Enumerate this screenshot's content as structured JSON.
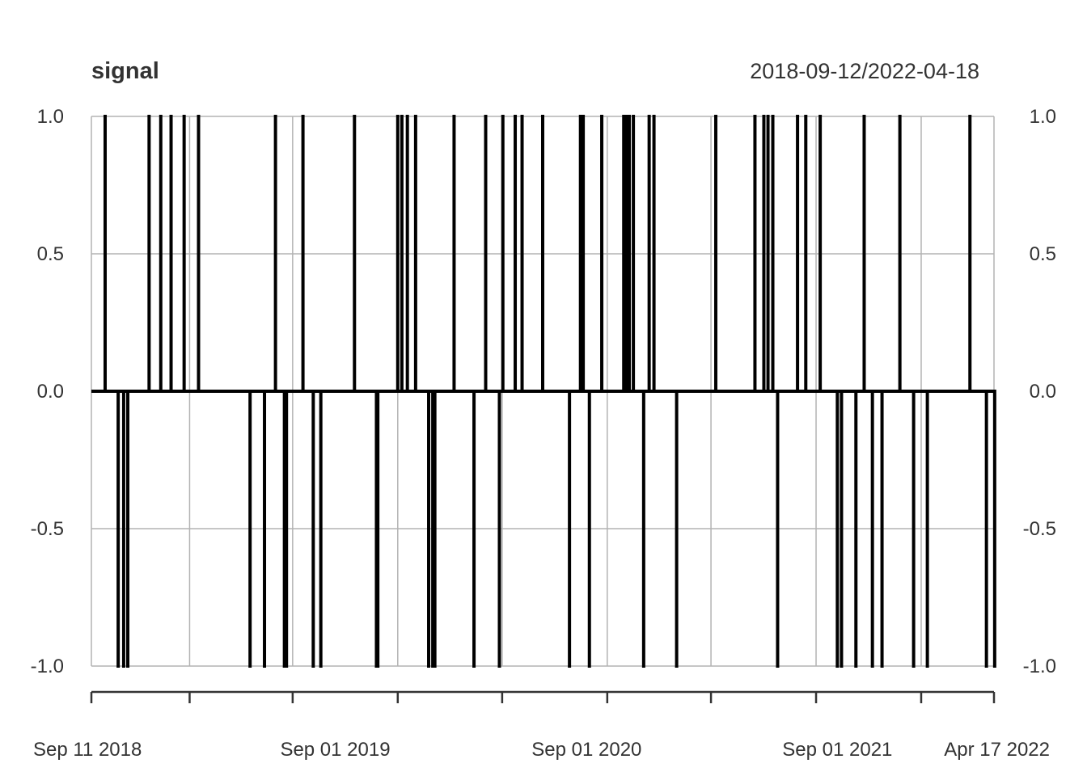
{
  "chart_data": {
    "type": "line",
    "title": "signal",
    "date_range_label": "2018-09-12/2022-04-18",
    "xlabel": "",
    "ylabel": "",
    "ylim": [
      -1.0,
      1.0
    ],
    "xlim": [
      "2018-09-11",
      "2022-04-17"
    ],
    "y_tick_labels": [
      "1.0",
      "0.5",
      "0.0",
      "-0.5",
      "-1.0"
    ],
    "y_ticks": [
      1.0,
      0.5,
      0.0,
      -0.5,
      -1.0
    ],
    "x_ticks": [
      "2018-09-11",
      "2019-02-01",
      "2019-07-01",
      "2019-12-01",
      "2020-05-01",
      "2020-10-01",
      "2021-03-01",
      "2021-08-01",
      "2022-01-01",
      "2022-04-17"
    ],
    "x_tick_labels": [
      {
        "date": "2018-09-11",
        "label": "Sep 11 2018"
      },
      {
        "date": "2019-09-01",
        "label": "Sep 01 2019"
      },
      {
        "date": "2020-09-01",
        "label": "Sep 01 2020"
      },
      {
        "date": "2021-09-01",
        "label": "Sep 01 2021"
      },
      {
        "date": "2022-04-17",
        "label": "Apr 17 2022"
      }
    ],
    "grid": true,
    "series": [
      {
        "values_note_free": true,
        "signal_events": [
          {
            "date": "2018-10-01",
            "value": 1
          },
          {
            "date": "2018-10-20",
            "value": -1
          },
          {
            "date": "2018-10-28",
            "value": -1
          },
          {
            "date": "2018-11-03",
            "value": -1
          },
          {
            "date": "2018-12-04",
            "value": 1
          },
          {
            "date": "2018-12-21",
            "value": 1
          },
          {
            "date": "2019-01-05",
            "value": 1
          },
          {
            "date": "2019-01-24",
            "value": 1
          },
          {
            "date": "2019-02-14",
            "value": 1
          },
          {
            "date": "2019-04-30",
            "value": -1
          },
          {
            "date": "2019-05-21",
            "value": -1
          },
          {
            "date": "2019-06-06",
            "value": 1
          },
          {
            "date": "2019-06-19",
            "value": -1
          },
          {
            "date": "2019-06-22",
            "value": -1
          },
          {
            "date": "2019-07-16",
            "value": 1
          },
          {
            "date": "2019-07-31",
            "value": -1
          },
          {
            "date": "2019-08-11",
            "value": -1
          },
          {
            "date": "2019-09-29",
            "value": 1
          },
          {
            "date": "2019-10-31",
            "value": -1
          },
          {
            "date": "2019-11-02",
            "value": -1
          },
          {
            "date": "2019-12-01",
            "value": 1
          },
          {
            "date": "2019-12-07",
            "value": 1
          },
          {
            "date": "2019-12-15",
            "value": 1
          },
          {
            "date": "2019-12-27",
            "value": 1
          },
          {
            "date": "2020-01-15",
            "value": -1
          },
          {
            "date": "2020-01-21",
            "value": -1
          },
          {
            "date": "2020-01-24",
            "value": -1
          },
          {
            "date": "2020-02-21",
            "value": 1
          },
          {
            "date": "2020-03-21",
            "value": -1
          },
          {
            "date": "2020-04-07",
            "value": 1
          },
          {
            "date": "2020-04-27",
            "value": -1
          },
          {
            "date": "2020-05-02",
            "value": 1
          },
          {
            "date": "2020-05-20",
            "value": 1
          },
          {
            "date": "2020-05-30",
            "value": 1
          },
          {
            "date": "2020-06-29",
            "value": 1
          },
          {
            "date": "2020-08-07",
            "value": -1
          },
          {
            "date": "2020-08-23",
            "value": 1
          },
          {
            "date": "2020-08-27",
            "value": 1
          },
          {
            "date": "2020-09-05",
            "value": -1
          },
          {
            "date": "2020-09-23",
            "value": 1
          },
          {
            "date": "2020-10-25",
            "value": 1
          },
          {
            "date": "2020-10-29",
            "value": 1
          },
          {
            "date": "2020-11-02",
            "value": 1
          },
          {
            "date": "2020-11-08",
            "value": 1
          },
          {
            "date": "2020-11-23",
            "value": -1
          },
          {
            "date": "2020-12-01",
            "value": 1
          },
          {
            "date": "2020-12-08",
            "value": 1
          },
          {
            "date": "2021-01-10",
            "value": -1
          },
          {
            "date": "2021-03-08",
            "value": 1
          },
          {
            "date": "2021-05-04",
            "value": 1
          },
          {
            "date": "2021-05-17",
            "value": 1
          },
          {
            "date": "2021-05-23",
            "value": 1
          },
          {
            "date": "2021-05-30",
            "value": 1
          },
          {
            "date": "2021-06-06",
            "value": -1
          },
          {
            "date": "2021-07-05",
            "value": 1
          },
          {
            "date": "2021-07-17",
            "value": 1
          },
          {
            "date": "2021-08-07",
            "value": 1
          },
          {
            "date": "2021-09-01",
            "value": -1
          },
          {
            "date": "2021-09-07",
            "value": -1
          },
          {
            "date": "2021-09-28",
            "value": -1
          },
          {
            "date": "2021-10-10",
            "value": 1
          },
          {
            "date": "2021-10-22",
            "value": -1
          },
          {
            "date": "2021-11-05",
            "value": -1
          },
          {
            "date": "2021-12-01",
            "value": 1
          },
          {
            "date": "2021-12-21",
            "value": -1
          },
          {
            "date": "2022-01-10",
            "value": -1
          },
          {
            "date": "2022-03-13",
            "value": 1
          },
          {
            "date": "2022-04-06",
            "value": -1
          },
          {
            "date": "2022-04-18",
            "value": -1
          }
        ]
      }
    ]
  }
}
